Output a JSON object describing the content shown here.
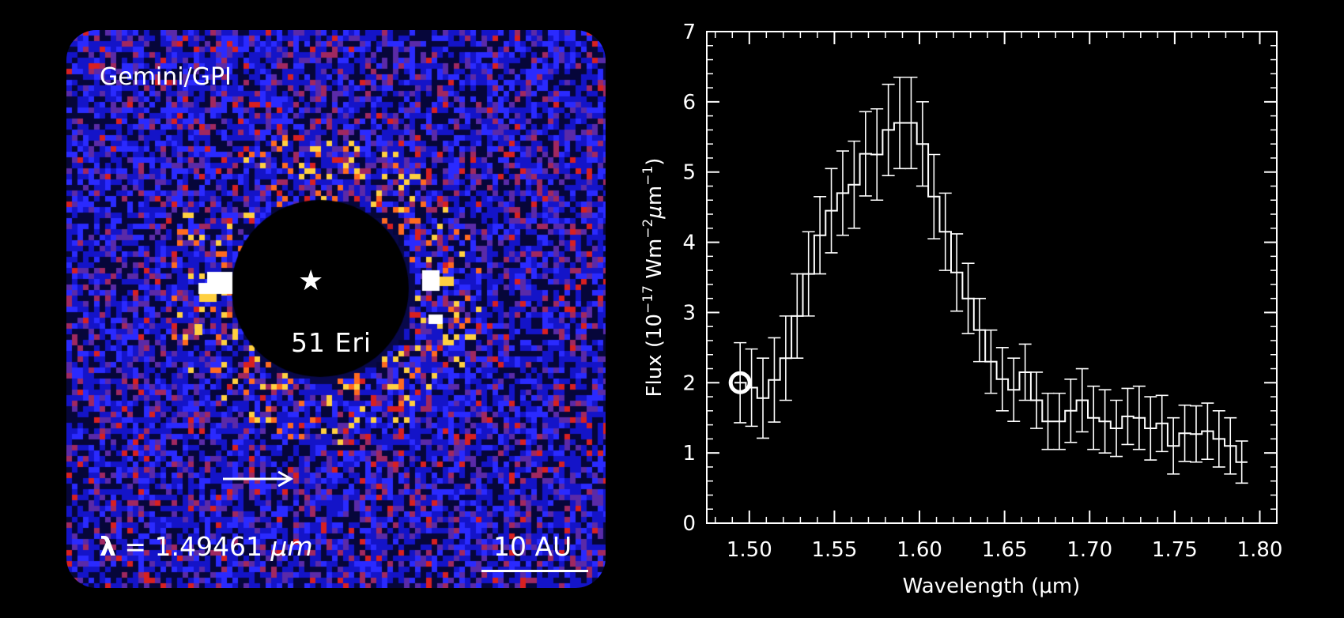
{
  "image_panel": {
    "title": "Gemini/GPI",
    "star_label": "51 Eri",
    "wavelength_label": "= 1.49461",
    "wavelength_symbol": "λ",
    "wavelength_unit": "μm",
    "scale_label": "10 AU",
    "colors": {
      "background": "#0a0a6e",
      "noise_low": "#1a1aff",
      "noise_mid": "#7a2a8a",
      "noise_high": "#e02020",
      "hot": "#ffd040",
      "core": "#ffffff"
    }
  },
  "chart_data": {
    "type": "line",
    "subtype": "step-with-errorbars",
    "xlabel": "Wavelength (μm)",
    "ylabel_parts": {
      "pre": "Flux (10",
      "exp1": "−17",
      "mid": " Wm",
      "exp2": "−2",
      "mu": "μ",
      "post": "m",
      "exp3": "−1",
      "close": ")"
    },
    "xlim": [
      1.475,
      1.81
    ],
    "ylim": [
      0,
      7
    ],
    "xticks": [
      1.5,
      1.55,
      1.6,
      1.65,
      1.7,
      1.75,
      1.8
    ],
    "xtick_labels": [
      "1.50",
      "1.55",
      "1.60",
      "1.65",
      "1.70",
      "1.75",
      "1.80"
    ],
    "yticks": [
      0,
      1,
      2,
      3,
      4,
      5,
      6,
      7
    ],
    "ytick_labels": [
      "0",
      "1",
      "2",
      "3",
      "4",
      "5",
      "6",
      "7"
    ],
    "grid": false,
    "color": "#ffffff",
    "x": [
      1.4946,
      1.5013,
      1.508,
      1.5147,
      1.5214,
      1.5281,
      1.5348,
      1.5415,
      1.5482,
      1.5549,
      1.5616,
      1.5683,
      1.575,
      1.5817,
      1.5884,
      1.5951,
      1.6018,
      1.6085,
      1.6152,
      1.6219,
      1.6286,
      1.6353,
      1.642,
      1.6487,
      1.6554,
      1.6621,
      1.6688,
      1.6755,
      1.6822,
      1.6889,
      1.6956,
      1.7023,
      1.709,
      1.7157,
      1.7224,
      1.7291,
      1.7358,
      1.7425,
      1.7492,
      1.7559,
      1.7626,
      1.7693,
      1.776,
      1.7827,
      1.7894
    ],
    "y": [
      2.0,
      1.93,
      1.78,
      2.04,
      2.35,
      2.95,
      3.55,
      4.1,
      4.45,
      4.7,
      4.82,
      5.26,
      5.25,
      5.6,
      5.7,
      5.7,
      5.4,
      4.65,
      4.15,
      3.57,
      3.2,
      2.75,
      2.3,
      2.05,
      1.9,
      2.15,
      1.75,
      1.45,
      1.45,
      1.6,
      1.75,
      1.5,
      1.45,
      1.35,
      1.52,
      1.5,
      1.35,
      1.42,
      1.1,
      1.28,
      1.27,
      1.31,
      1.2,
      1.1,
      0.87
    ],
    "yerr": [
      0.57,
      0.55,
      0.57,
      0.6,
      0.6,
      0.6,
      0.6,
      0.55,
      0.6,
      0.6,
      0.62,
      0.6,
      0.65,
      0.65,
      0.65,
      0.65,
      0.6,
      0.6,
      0.55,
      0.55,
      0.5,
      0.45,
      0.45,
      0.45,
      0.45,
      0.4,
      0.4,
      0.4,
      0.4,
      0.45,
      0.45,
      0.45,
      0.45,
      0.4,
      0.4,
      0.45,
      0.45,
      0.4,
      0.4,
      0.4,
      0.4,
      0.4,
      0.4,
      0.4,
      0.3
    ],
    "highlight_point": {
      "x": 1.4946,
      "y": 2.0
    }
  }
}
